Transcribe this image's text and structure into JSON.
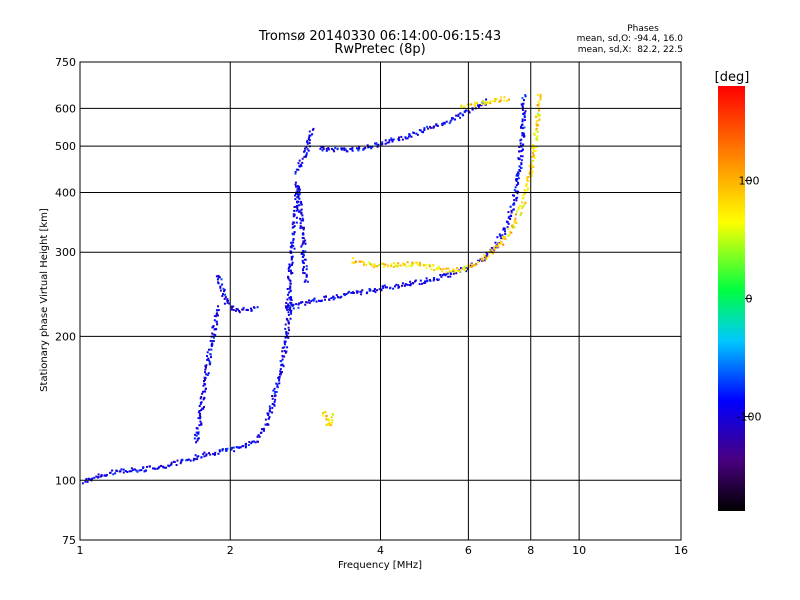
{
  "chart_data": {
    "type": "scatter",
    "title": "Tromsø 20140330 06:14:00-06:15:43",
    "subtitle": "RwPretec (8p)",
    "xlabel": "Frequency [MHz]",
    "ylabel": "Stationary phase Virtual Height [km]",
    "x_scale": "log",
    "y_scale": "log",
    "xlim": [
      1,
      16
    ],
    "ylim": [
      75,
      750
    ],
    "x_ticks": [
      1,
      2,
      4,
      6,
      8,
      10,
      16
    ],
    "x_tick_labels": [
      "1",
      "2",
      "4",
      "6",
      "8",
      "10",
      "16"
    ],
    "y_ticks": [
      75,
      100,
      200,
      300,
      400,
      500,
      600,
      750
    ],
    "y_tick_labels": [
      "75",
      "100",
      "200",
      "300",
      "400",
      "500",
      "600",
      "750"
    ],
    "grid": true,
    "stats": {
      "header": "Phases",
      "line_o": "mean, sd,O: -94.4, 16.0",
      "line_x": "mean, sd,X:  82.2, 22.5"
    },
    "colorbar": {
      "label": "[deg]",
      "min": -180,
      "max": 180,
      "ticks": [
        100,
        0,
        -100
      ],
      "tick_labels": [
        "100",
        "0",
        "-100"
      ]
    },
    "series": [
      {
        "mode": "O",
        "mean_phase": -94.4,
        "segments": [
          [
            [
              1.0,
              100
            ],
            [
              1.05,
              101
            ],
            [
              1.1,
              103
            ],
            [
              1.2,
              105
            ],
            [
              1.35,
              106
            ],
            [
              1.5,
              108
            ],
            [
              1.65,
              111
            ],
            [
              1.8,
              114
            ],
            [
              1.95,
              116
            ],
            [
              2.1,
              118
            ],
            [
              2.25,
              122
            ],
            [
              2.35,
              130
            ],
            [
              2.42,
              145
            ],
            [
              2.5,
              165
            ],
            [
              2.56,
              190
            ],
            [
              2.6,
              215
            ],
            [
              2.63,
              240
            ]
          ],
          [
            [
              2.55,
              230
            ],
            [
              2.7,
              233
            ],
            [
              2.9,
              238
            ],
            [
              3.2,
              243
            ],
            [
              3.6,
              248
            ],
            [
              4.0,
              253
            ],
            [
              4.5,
              258
            ],
            [
              5.0,
              264
            ],
            [
              5.5,
              271
            ],
            [
              6.0,
              280
            ],
            [
              6.4,
              292
            ],
            [
              6.8,
              312
            ],
            [
              7.1,
              340
            ],
            [
              7.4,
              390
            ],
            [
              7.55,
              450
            ],
            [
              7.65,
              520
            ],
            [
              7.7,
              590
            ],
            [
              7.7,
              640
            ]
          ],
          [
            [
              2.6,
              230
            ],
            [
              2.62,
              260
            ],
            [
              2.65,
              300
            ],
            [
              2.68,
              340
            ],
            [
              2.7,
              380
            ],
            [
              2.72,
              420
            ],
            [
              2.75,
              370
            ],
            [
              2.78,
              330
            ],
            [
              2.8,
              290
            ],
            [
              2.82,
              260
            ]
          ],
          [
            [
              1.7,
              120
            ],
            [
              1.74,
              140
            ],
            [
              1.78,
              165
            ],
            [
              1.82,
              190
            ],
            [
              1.86,
              215
            ],
            [
              1.9,
              232
            ]
          ],
          [
            [
              1.88,
              270
            ],
            [
              1.92,
              250
            ],
            [
              1.97,
              235
            ],
            [
              2.05,
              228
            ],
            [
              2.15,
              228
            ],
            [
              2.25,
              230
            ]
          ],
          [
            [
              3.0,
              497
            ],
            [
              3.3,
              492
            ],
            [
              3.6,
              495
            ],
            [
              3.9,
              505
            ],
            [
              4.2,
              515
            ],
            [
              4.6,
              530
            ],
            [
              5.0,
              548
            ],
            [
              5.4,
              565
            ],
            [
              5.8,
              585
            ],
            [
              6.2,
              605
            ],
            [
              6.5,
              625
            ]
          ],
          [
            [
              2.9,
              545
            ],
            [
              2.85,
              500
            ],
            [
              2.78,
              470
            ],
            [
              2.7,
              440
            ]
          ]
        ]
      },
      {
        "mode": "X",
        "mean_phase": 82.2,
        "segments": [
          [
            [
              3.5,
              290
            ],
            [
              3.8,
              283
            ],
            [
              4.2,
              283
            ],
            [
              4.6,
              285
            ],
            [
              5.0,
              281
            ],
            [
              5.4,
              276
            ],
            [
              5.8,
              278
            ],
            [
              6.2,
              286
            ],
            [
              6.6,
              300
            ],
            [
              7.0,
              318
            ],
            [
              7.4,
              345
            ],
            [
              7.7,
              385
            ],
            [
              7.95,
              440
            ],
            [
              8.1,
              500
            ],
            [
              8.2,
              560
            ],
            [
              8.25,
              610
            ],
            [
              8.3,
              650
            ]
          ],
          [
            [
              3.05,
              140
            ],
            [
              3.1,
              135
            ],
            [
              3.15,
              130
            ],
            [
              3.2,
              138
            ]
          ],
          [
            [
              5.8,
              605
            ],
            [
              6.2,
              615
            ],
            [
              6.7,
              625
            ],
            [
              7.2,
              632
            ]
          ]
        ]
      }
    ]
  }
}
